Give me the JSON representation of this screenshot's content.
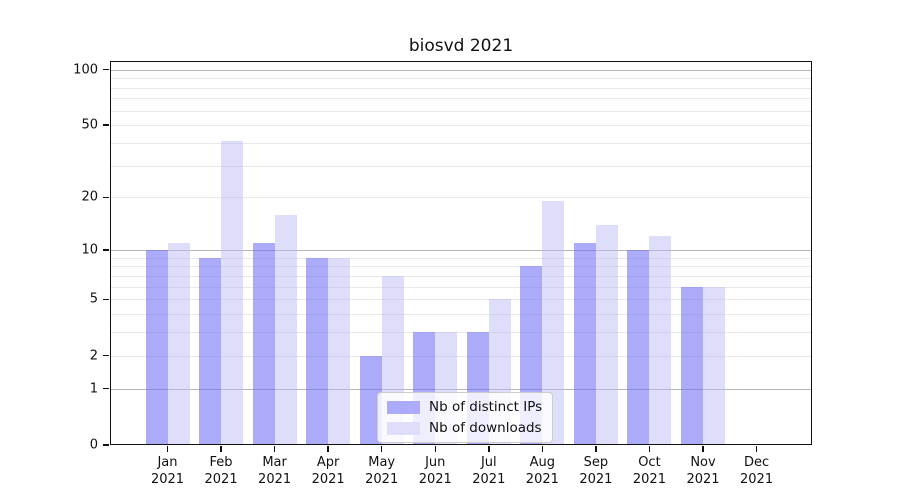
{
  "title": "biosvd 2021",
  "colors": {
    "ips_fill": "rgba(110,110,245,0.58)",
    "downloads_fill": "rgba(185,185,245,0.47)",
    "ips_solid": "#ababf9",
    "downloads_solid": "#dedefa",
    "grid_major": "#b6b6b6",
    "grid_minor": "#e9e9e9",
    "axis": "#111111"
  },
  "legend": {
    "items": [
      {
        "label": "Nb of distinct IPs",
        "color": "#ababf9"
      },
      {
        "label": "Nb of downloads",
        "color": "#dedefa"
      }
    ]
  },
  "y_axis": {
    "tick_values": [
      0,
      1,
      2,
      5,
      10,
      20,
      50,
      100
    ],
    "tick_labels": [
      "0",
      "1",
      "2",
      "5",
      "10",
      "20",
      "50",
      "100"
    ],
    "scale": "log1p"
  },
  "x_axis": {
    "months": [
      "Jan",
      "Feb",
      "Mar",
      "Apr",
      "May",
      "Jun",
      "Jul",
      "Aug",
      "Sep",
      "Oct",
      "Nov",
      "Dec"
    ],
    "year": "2021"
  },
  "chart_data": {
    "type": "bar",
    "title": "biosvd 2021",
    "categories": [
      "Jan 2021",
      "Feb 2021",
      "Mar 2021",
      "Apr 2021",
      "May 2021",
      "Jun 2021",
      "Jul 2021",
      "Aug 2021",
      "Sep 2021",
      "Oct 2021",
      "Nov 2021",
      "Dec 2021"
    ],
    "series": [
      {
        "name": "Nb of distinct IPs",
        "color": "#ababf9",
        "values": [
          10,
          9,
          11,
          9,
          2,
          3,
          3,
          8,
          11,
          10,
          6,
          0
        ]
      },
      {
        "name": "Nb of downloads",
        "color": "#dedefa",
        "values": [
          11,
          41,
          16,
          9,
          7,
          3,
          5,
          19,
          14,
          12,
          6,
          0
        ]
      }
    ],
    "yscale": "log1p",
    "ylim": [
      0,
      108
    ],
    "y_ticks": [
      0,
      1,
      2,
      5,
      10,
      20,
      50,
      100
    ],
    "grid": true,
    "legend_position": "lower center"
  }
}
